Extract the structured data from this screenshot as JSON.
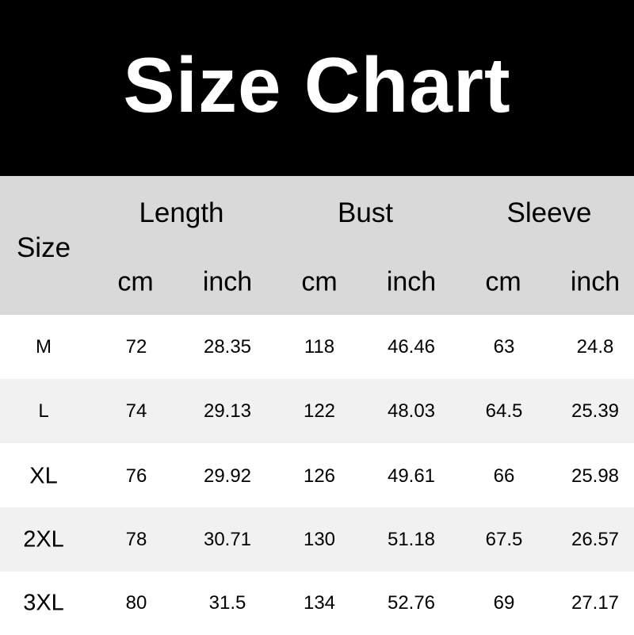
{
  "title": "Size Chart",
  "header": {
    "size_label": "Size",
    "groups": [
      "Length",
      "Bust",
      "Sleeve"
    ],
    "units": [
      "cm",
      "inch",
      "cm",
      "inch",
      "cm",
      "inch"
    ]
  },
  "colors": {
    "banner": "#000000",
    "header_bg": "#d9d9d9",
    "alt_row_bg": "#f1f1f1"
  },
  "rows": [
    {
      "size": "M",
      "values": [
        "72",
        "28.35",
        "118",
        "46.46",
        "63",
        "24.8"
      ]
    },
    {
      "size": "L",
      "values": [
        "74",
        "29.13",
        "122",
        "48.03",
        "64.5",
        "25.39"
      ]
    },
    {
      "size": "XL",
      "values": [
        "76",
        "29.92",
        "126",
        "49.61",
        "66",
        "25.98"
      ]
    },
    {
      "size": "2XL",
      "values": [
        "78",
        "30.71",
        "130",
        "51.18",
        "67.5",
        "26.57"
      ]
    },
    {
      "size": "3XL",
      "values": [
        "80",
        "31.5",
        "134",
        "52.76",
        "69",
        "27.17"
      ]
    }
  ]
}
